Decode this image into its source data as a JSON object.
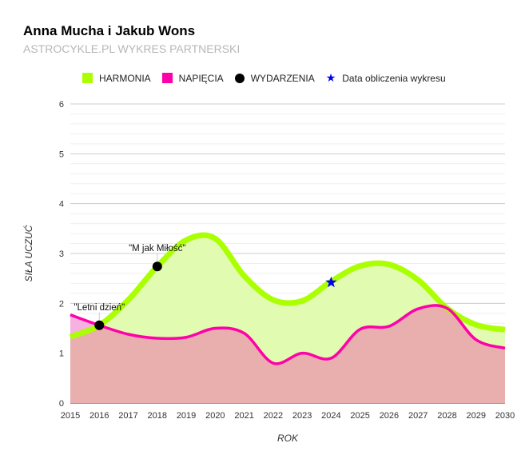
{
  "chart_data": {
    "type": "area",
    "title": "Anna Mucha i Jakub Wons",
    "subtitle": "ASTROCYKLE.PL WYKRES PARTNERSKI",
    "xlabel": "ROK",
    "ylabel": "SIŁA UCZUĆ",
    "xlim": [
      2015,
      2030
    ],
    "ylim": [
      0,
      6
    ],
    "x_ticks": [
      "2015",
      "2016",
      "2017",
      "2018",
      "2019",
      "2020",
      "2021",
      "2022",
      "2023",
      "2024",
      "2025",
      "2026",
      "2027",
      "2028",
      "2029",
      "2030"
    ],
    "y_ticks": [
      "0",
      "1",
      "2",
      "3",
      "4",
      "5",
      "6"
    ],
    "grid": true,
    "legend_position": "top",
    "x": [
      2015,
      2016,
      2017,
      2018,
      2019,
      2020,
      2021,
      2022,
      2023,
      2024,
      2025,
      2026,
      2027,
      2028,
      2029,
      2030
    ],
    "series": [
      {
        "name": "HARMONIA",
        "color": "#aaff00",
        "values": [
          1.33,
          1.56,
          2.07,
          2.74,
          3.27,
          3.3,
          2.55,
          2.07,
          2.05,
          2.44,
          2.75,
          2.78,
          2.47,
          1.9,
          1.57,
          1.47
        ]
      },
      {
        "name": "NAPIĘCIA",
        "color": "#ff00aa",
        "values": [
          1.77,
          1.56,
          1.38,
          1.3,
          1.32,
          1.5,
          1.4,
          0.8,
          1.0,
          0.9,
          1.48,
          1.54,
          1.89,
          1.9,
          1.27,
          1.1
        ]
      }
    ],
    "events_legend": "WYDARZENIA",
    "events": [
      {
        "x": 2016,
        "y": 1.56,
        "label": "\"Letni dzień\""
      },
      {
        "x": 2018,
        "y": 2.74,
        "label": "\"M jak Miłość\""
      }
    ],
    "marker_legend": "Data obliczenia wykresu",
    "marker": {
      "x": 2024,
      "y": 2.42,
      "color": "#0000ee"
    }
  }
}
